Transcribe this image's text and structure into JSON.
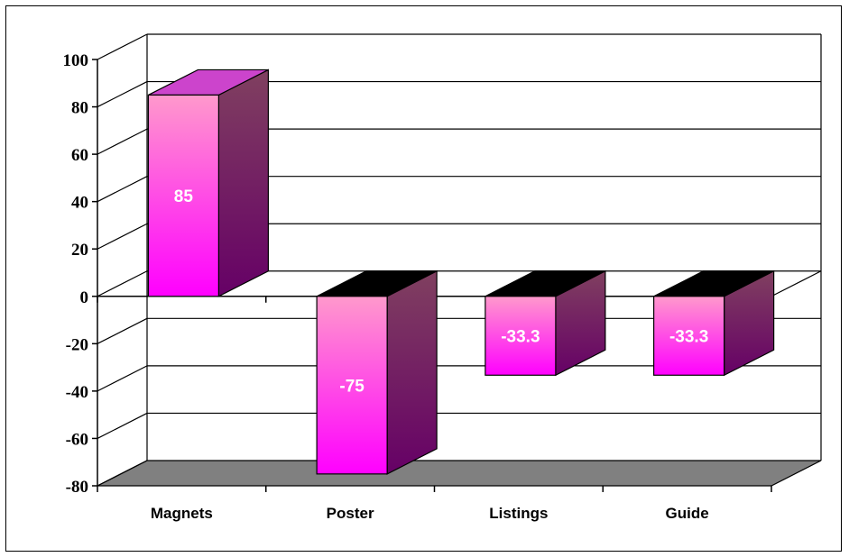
{
  "chart_data": {
    "type": "bar",
    "style": "3d-column",
    "categories": [
      "Magnets",
      "Poster",
      "Listings",
      "Guide"
    ],
    "values": [
      85,
      -75,
      -33.3,
      -33.3
    ],
    "data_labels": [
      "85",
      "-75",
      "-33.3",
      "-33.3"
    ],
    "ylim": [
      -80,
      100
    ],
    "yticks": [
      100,
      80,
      60,
      40,
      20,
      0,
      -20,
      -40,
      -60,
      -80
    ],
    "ytick_labels": [
      "100",
      "80",
      "60",
      "40",
      "20",
      "0",
      "-20",
      "-40",
      "-60",
      "-80"
    ],
    "grid": true,
    "legend": "none",
    "title": "",
    "xlabel": "",
    "ylabel": "",
    "colors": {
      "bar_front_top": "#ff99cc",
      "bar_front_bottom": "#ff00ff",
      "bar_side_top": "#804060",
      "bar_side_bottom": "#660066",
      "bar_top_face": "#cc44cc",
      "floor": "#808080"
    }
  }
}
